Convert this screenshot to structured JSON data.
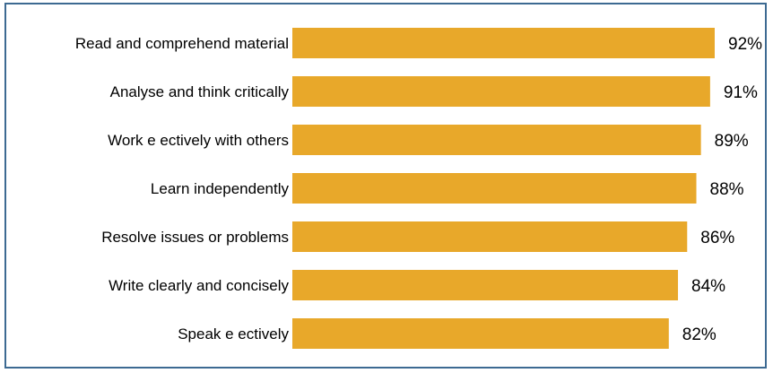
{
  "colors": {
    "bar": "#e8a82a",
    "frame": "#3d6a92"
  },
  "chart_data": {
    "type": "bar",
    "orientation": "horizontal",
    "categories": [
      "Read and comprehend material",
      "Analyse and think critically",
      "Work e ectively with others",
      "Learn independently",
      "Resolve issues or problems",
      "Write clearly and concisely",
      "Speak e ectively"
    ],
    "values": [
      92,
      91,
      89,
      88,
      86,
      84,
      82
    ],
    "value_labels": [
      "92%",
      "91%",
      "89%",
      "88%",
      "86%",
      "84%",
      "82%"
    ],
    "title": "",
    "xlabel": "",
    "ylabel": "",
    "xlim": [
      0,
      92
    ],
    "grid": false,
    "legend": "none"
  }
}
